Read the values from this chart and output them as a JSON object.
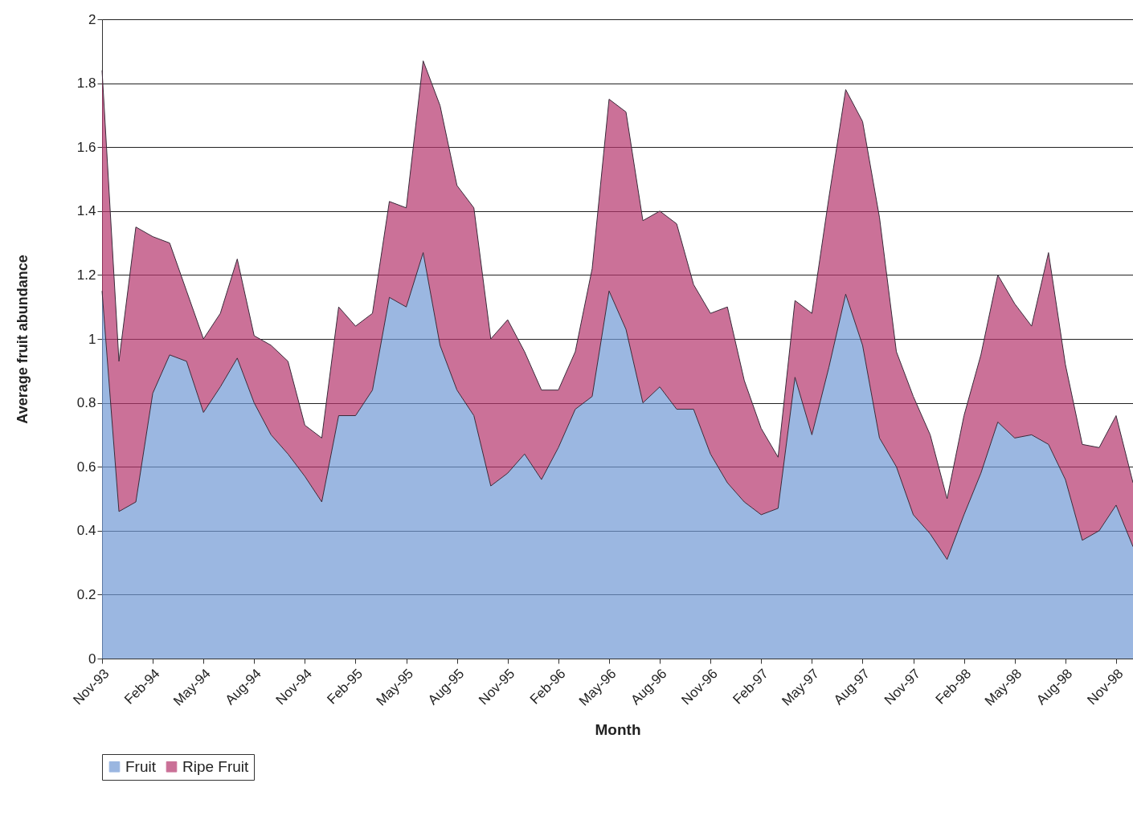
{
  "chart_data": {
    "type": "area",
    "stacked": true,
    "xlabel": "Month",
    "ylabel": "Average fruit abundance",
    "categories": [
      "Nov-93",
      null,
      null,
      "Feb-94",
      null,
      null,
      "May-94",
      null,
      null,
      "Aug-94",
      null,
      null,
      "Nov-94",
      null,
      null,
      "Feb-95",
      null,
      null,
      "May-95",
      null,
      null,
      "Aug-95",
      null,
      null,
      "Nov-95",
      null,
      null,
      "Feb-96",
      null,
      null,
      "May-96",
      null,
      null,
      "Aug-96",
      null,
      null,
      "Nov-96",
      null,
      null,
      "Feb-97",
      null,
      null,
      "May-97",
      null,
      null,
      "Aug-97",
      null,
      null,
      "Nov-97",
      null,
      null,
      "Feb-98",
      null,
      null,
      "May-98",
      null,
      null,
      "Aug-98",
      null,
      null,
      "Nov-98",
      null
    ],
    "series": [
      {
        "name": "Fruit",
        "color": "#7098d4",
        "values": [
          1.15,
          0.46,
          0.49,
          0.83,
          0.95,
          0.93,
          0.77,
          0.85,
          0.94,
          0.8,
          0.7,
          0.64,
          0.57,
          0.49,
          0.76,
          0.76,
          0.84,
          1.13,
          1.1,
          1.27,
          0.98,
          0.84,
          0.76,
          0.54,
          0.58,
          0.64,
          0.56,
          0.66,
          0.78,
          0.82,
          1.15,
          1.03,
          0.8,
          0.85,
          0.78,
          0.78,
          0.64,
          0.55,
          0.49,
          0.45,
          0.47,
          0.88,
          0.7,
          0.91,
          1.14,
          0.98,
          0.69,
          0.6,
          0.45,
          0.39,
          0.31,
          0.45,
          0.58,
          0.74,
          0.69,
          0.7,
          0.67,
          0.56,
          0.37,
          0.4,
          0.48,
          0.35
        ]
      },
      {
        "name": "Ripe Fruit",
        "color": "#b5356c",
        "values": [
          0.69,
          0.47,
          0.86,
          0.49,
          0.35,
          0.22,
          0.23,
          0.23,
          0.31,
          0.21,
          0.28,
          0.29,
          0.16,
          0.2,
          0.34,
          0.28,
          0.24,
          0.3,
          0.31,
          0.6,
          0.75,
          0.64,
          0.65,
          0.46,
          0.48,
          0.32,
          0.28,
          0.18,
          0.18,
          0.4,
          0.6,
          0.68,
          0.57,
          0.55,
          0.58,
          0.39,
          0.44,
          0.55,
          0.38,
          0.27,
          0.16,
          0.24,
          0.38,
          0.53,
          0.64,
          0.7,
          0.69,
          0.36,
          0.37,
          0.31,
          0.19,
          0.31,
          0.37,
          0.46,
          0.42,
          0.34,
          0.6,
          0.36,
          0.3,
          0.26,
          0.28,
          0.2
        ]
      }
    ],
    "ylim": [
      0,
      2
    ],
    "yticks": [
      0,
      0.2,
      0.4,
      0.6,
      0.8,
      1,
      1.2,
      1.4,
      1.6,
      1.8,
      2
    ],
    "grid": "y",
    "legend": "bottom"
  }
}
